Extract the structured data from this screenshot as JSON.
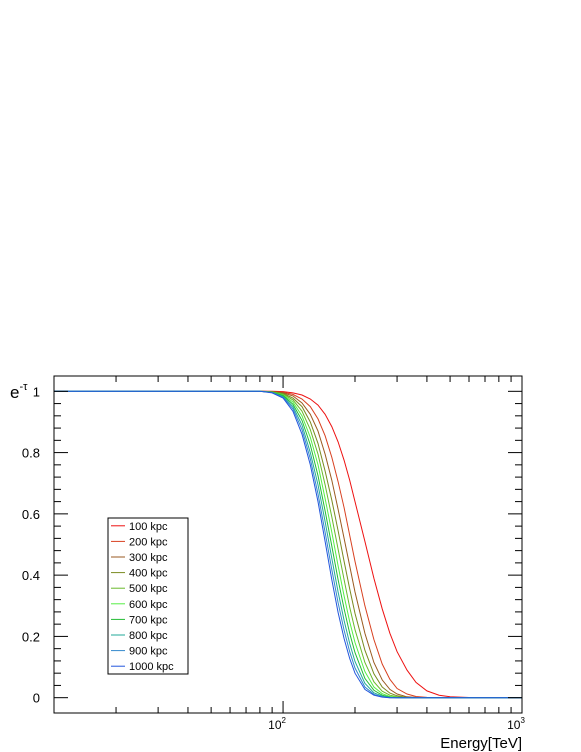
{
  "chart_data": {
    "type": "line",
    "title": "",
    "xlabel": "Energy[TeV]",
    "ylabel_base": "e",
    "ylabel_sup": "-τ",
    "xscale": "log",
    "xlim": [
      11,
      1000
    ],
    "ylim": [
      -0.05,
      1.05
    ],
    "grid": false,
    "legend_position": "middle-left",
    "x_ticks": [
      {
        "value": 100,
        "base": "10",
        "exp": "2"
      },
      {
        "value": 1000,
        "base": "10",
        "exp": "3"
      }
    ],
    "y_ticks": [
      {
        "value": 0,
        "label": "0"
      },
      {
        "value": 0.2,
        "label": "0.2"
      },
      {
        "value": 0.4,
        "label": "0.4"
      },
      {
        "value": 0.6,
        "label": "0.6"
      },
      {
        "value": 0.8,
        "label": "0.8"
      },
      {
        "value": 1,
        "label": "1"
      }
    ],
    "x": [
      11,
      80,
      90,
      100,
      110,
      120,
      130,
      140,
      150,
      160,
      170,
      180,
      190,
      200,
      220,
      240,
      260,
      280,
      300,
      330,
      360,
      400,
      450,
      500,
      600,
      700,
      800,
      1000
    ],
    "series": [
      {
        "name": "100 kpc",
        "color": "#ee1111",
        "values": [
          1,
          1,
          1,
          0.999,
          0.995,
          0.988,
          0.975,
          0.955,
          0.925,
          0.885,
          0.835,
          0.775,
          0.71,
          0.64,
          0.51,
          0.39,
          0.29,
          0.21,
          0.15,
          0.09,
          0.05,
          0.022,
          0.008,
          0.003,
          0.0005,
          0,
          0,
          0
        ]
      },
      {
        "name": "200 kpc",
        "color": "#d84020",
        "values": [
          1,
          1,
          0.999,
          0.997,
          0.99,
          0.975,
          0.95,
          0.91,
          0.855,
          0.785,
          0.705,
          0.62,
          0.53,
          0.445,
          0.3,
          0.19,
          0.11,
          0.06,
          0.03,
          0.012,
          0.004,
          0.001,
          0,
          0,
          0,
          0,
          0,
          0
        ]
      },
      {
        "name": "300 kpc",
        "color": "#9a5a20",
        "values": [
          1,
          1,
          0.999,
          0.995,
          0.985,
          0.962,
          0.925,
          0.87,
          0.795,
          0.71,
          0.615,
          0.52,
          0.43,
          0.345,
          0.21,
          0.115,
          0.058,
          0.027,
          0.012,
          0.003,
          0.001,
          0,
          0,
          0,
          0,
          0,
          0,
          0
        ]
      },
      {
        "name": "400 kpc",
        "color": "#7a8a20",
        "values": [
          1,
          1,
          0.998,
          0.993,
          0.978,
          0.95,
          0.9,
          0.83,
          0.74,
          0.645,
          0.545,
          0.445,
          0.355,
          0.275,
          0.155,
          0.078,
          0.035,
          0.015,
          0.006,
          0.001,
          0,
          0,
          0,
          0,
          0,
          0,
          0,
          0
        ]
      },
      {
        "name": "500 kpc",
        "color": "#6ab82a",
        "values": [
          1,
          1,
          0.998,
          0.991,
          0.972,
          0.935,
          0.875,
          0.795,
          0.695,
          0.59,
          0.485,
          0.385,
          0.295,
          0.222,
          0.115,
          0.052,
          0.021,
          0.008,
          0.003,
          0,
          0,
          0,
          0,
          0,
          0,
          0,
          0,
          0
        ]
      },
      {
        "name": "600 kpc",
        "color": "#55ee44",
        "values": [
          1,
          1,
          0.997,
          0.988,
          0.965,
          0.92,
          0.85,
          0.76,
          0.65,
          0.54,
          0.43,
          0.332,
          0.248,
          0.18,
          0.085,
          0.035,
          0.013,
          0.004,
          0.001,
          0,
          0,
          0,
          0,
          0,
          0,
          0,
          0,
          0
        ]
      },
      {
        "name": "700 kpc",
        "color": "#22bb33",
        "values": [
          1,
          1,
          0.997,
          0.986,
          0.958,
          0.905,
          0.825,
          0.725,
          0.61,
          0.495,
          0.385,
          0.29,
          0.21,
          0.147,
          0.063,
          0.024,
          0.008,
          0.002,
          0,
          0,
          0,
          0,
          0,
          0,
          0,
          0,
          0,
          0
        ]
      },
      {
        "name": "800 kpc",
        "color": "#22aa99",
        "values": [
          1,
          1,
          0.996,
          0.983,
          0.95,
          0.89,
          0.8,
          0.695,
          0.575,
          0.455,
          0.345,
          0.252,
          0.177,
          0.118,
          0.047,
          0.016,
          0.005,
          0.001,
          0,
          0,
          0,
          0,
          0,
          0,
          0,
          0,
          0,
          0
        ]
      },
      {
        "name": "900 kpc",
        "color": "#3388cc",
        "values": [
          1,
          1,
          0.996,
          0.98,
          0.943,
          0.875,
          0.78,
          0.665,
          0.54,
          0.418,
          0.31,
          0.22,
          0.15,
          0.097,
          0.035,
          0.011,
          0.003,
          0,
          0,
          0,
          0,
          0,
          0,
          0,
          0,
          0,
          0,
          0
        ]
      },
      {
        "name": "1000 kpc",
        "color": "#2255dd",
        "values": [
          1,
          1,
          0.995,
          0.978,
          0.935,
          0.86,
          0.76,
          0.64,
          0.51,
          0.385,
          0.278,
          0.193,
          0.128,
          0.08,
          0.027,
          0.008,
          0.002,
          0,
          0,
          0,
          0,
          0,
          0,
          0,
          0,
          0,
          0,
          0
        ]
      }
    ]
  }
}
